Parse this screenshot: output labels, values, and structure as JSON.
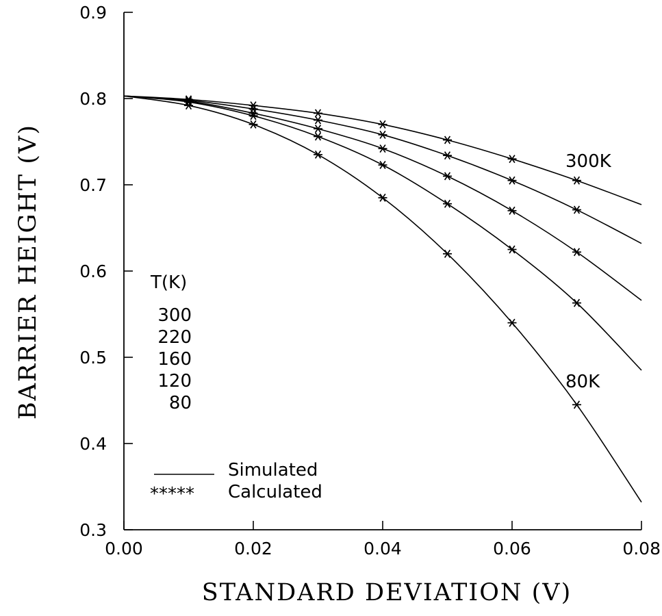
{
  "chart_data": {
    "type": "line",
    "xlabel": "STANDARD DEVIATION (V)",
    "ylabel": "BARRIER HEIGHT (V)",
    "xlim": [
      0.0,
      0.08
    ],
    "ylim": [
      0.3,
      0.9
    ],
    "x_ticks": [
      "0.00",
      "0.02",
      "0.04",
      "0.06",
      "0.08"
    ],
    "y_ticks": [
      "0.3",
      "0.4",
      "0.5",
      "0.6",
      "0.7",
      "0.8",
      "0.9"
    ],
    "grid": false,
    "series": [
      {
        "temperature_k": 300,
        "simulated": {
          "x": [
            0,
            0.01,
            0.02,
            0.03,
            0.04,
            0.05,
            0.06,
            0.07,
            0.08
          ],
          "y": [
            0.803,
            0.799,
            0.792,
            0.783,
            0.77,
            0.752,
            0.73,
            0.705,
            0.677
          ]
        },
        "calculated": {
          "x": [
            0.01,
            0.02,
            0.03,
            0.04,
            0.05,
            0.06,
            0.07
          ],
          "y": [
            0.799,
            0.792,
            0.783,
            0.77,
            0.752,
            0.73,
            0.705
          ]
        }
      },
      {
        "temperature_k": 220,
        "simulated": {
          "x": [
            0,
            0.01,
            0.02,
            0.03,
            0.04,
            0.05,
            0.06,
            0.07,
            0.08
          ],
          "y": [
            0.803,
            0.798,
            0.788,
            0.775,
            0.758,
            0.734,
            0.705,
            0.671,
            0.632
          ]
        },
        "calculated": {
          "x": [
            0.01,
            0.02,
            0.03,
            0.04,
            0.05,
            0.06,
            0.07
          ],
          "y": [
            0.798,
            0.788,
            0.775,
            0.758,
            0.734,
            0.705,
            0.671
          ]
        }
      },
      {
        "temperature_k": 160,
        "simulated": {
          "x": [
            0,
            0.01,
            0.02,
            0.03,
            0.04,
            0.05,
            0.06,
            0.07,
            0.08
          ],
          "y": [
            0.803,
            0.797,
            0.783,
            0.765,
            0.742,
            0.71,
            0.67,
            0.622,
            0.566
          ]
        },
        "calculated": {
          "x": [
            0.01,
            0.02,
            0.03,
            0.04,
            0.05,
            0.06,
            0.07
          ],
          "y": [
            0.797,
            0.783,
            0.765,
            0.742,
            0.71,
            0.67,
            0.622
          ]
        }
      },
      {
        "temperature_k": 120,
        "simulated": {
          "x": [
            0,
            0.01,
            0.02,
            0.03,
            0.04,
            0.05,
            0.06,
            0.07,
            0.08
          ],
          "y": [
            0.803,
            0.796,
            0.78,
            0.756,
            0.723,
            0.678,
            0.625,
            0.563,
            0.485
          ]
        },
        "calculated": {
          "x": [
            0.01,
            0.02,
            0.03,
            0.04,
            0.05,
            0.06,
            0.07
          ],
          "y": [
            0.796,
            0.78,
            0.756,
            0.723,
            0.678,
            0.625,
            0.563
          ]
        }
      },
      {
        "temperature_k": 80,
        "simulated": {
          "x": [
            0,
            0.01,
            0.02,
            0.03,
            0.04,
            0.05,
            0.06,
            0.07,
            0.08
          ],
          "y": [
            0.803,
            0.792,
            0.77,
            0.735,
            0.685,
            0.62,
            0.54,
            0.445,
            0.332
          ]
        },
        "calculated": {
          "x": [
            0.01,
            0.02,
            0.03,
            0.04,
            0.05,
            0.06,
            0.07
          ],
          "y": [
            0.792,
            0.77,
            0.735,
            0.685,
            0.62,
            0.54,
            0.445
          ]
        }
      }
    ],
    "annotations": {
      "top_curve_label": "300K",
      "bottom_curve_label": "80K",
      "temp_header": "T(K)",
      "temp_list": [
        "300",
        "220",
        "160",
        "120",
        "80"
      ]
    },
    "legend": {
      "placement": "bottom-left",
      "line_symbol": "______",
      "line_label": "Simulated",
      "marker_symbol": "*****",
      "marker_label": "Calculated"
    }
  }
}
